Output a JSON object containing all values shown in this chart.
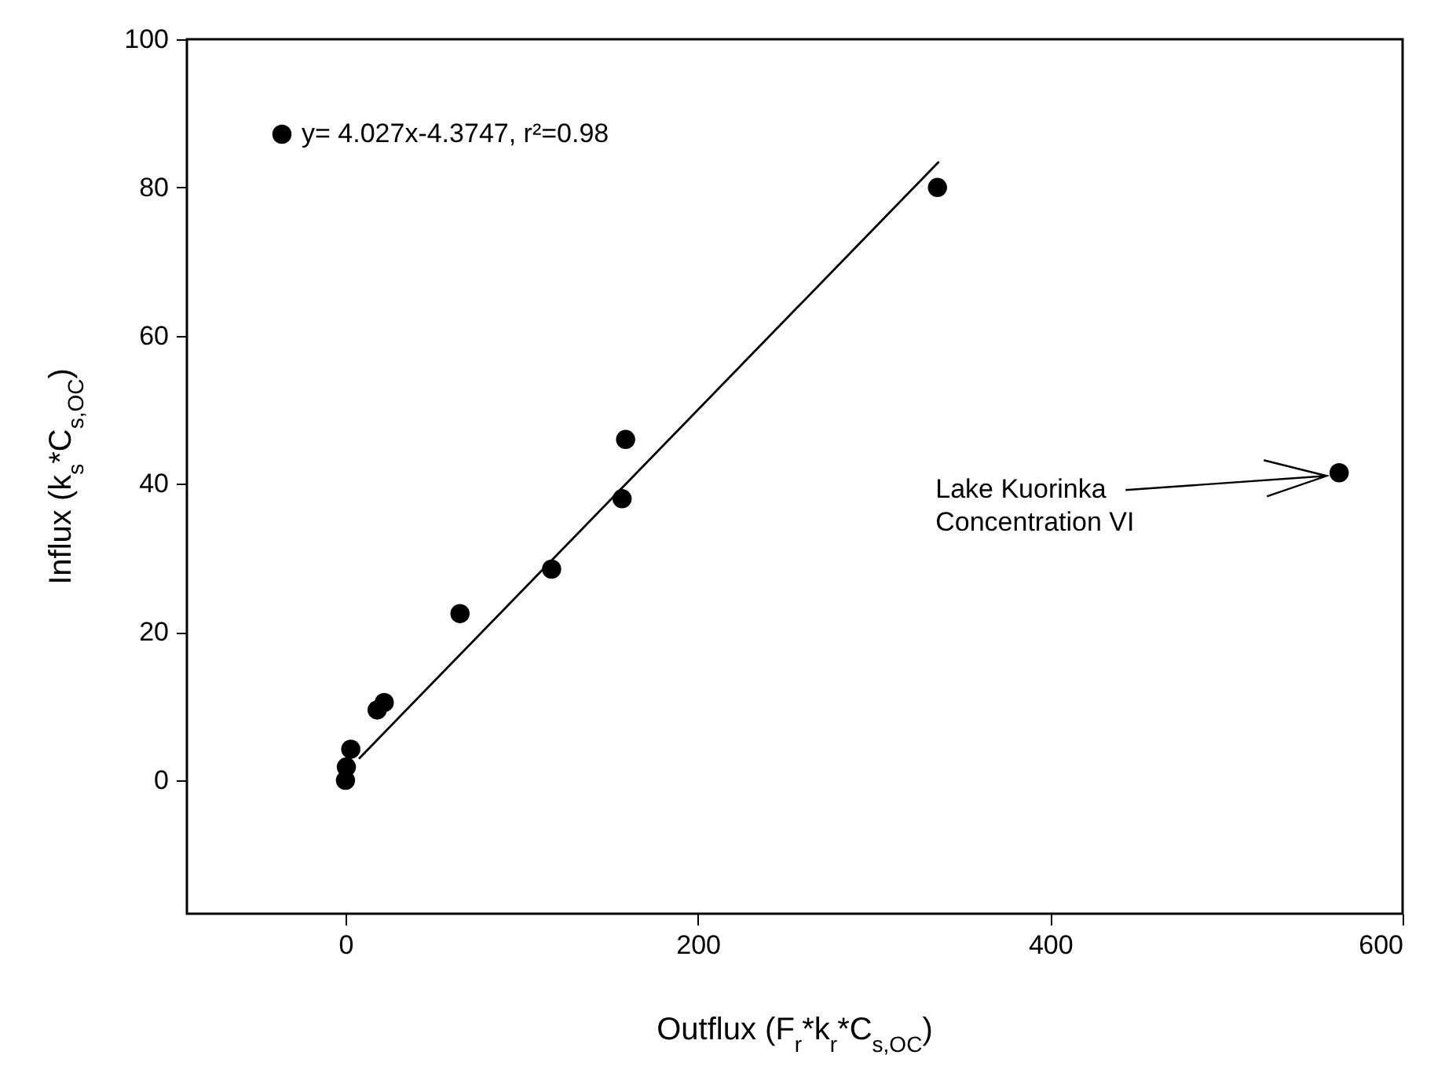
{
  "chart_data": {
    "type": "scatter",
    "xlabel": "Outflux (F$_{r}$*k$_{r}$*C$_{s,OC}$)",
    "ylabel": "Influx (k$_{s}$*C$_{s,OC}$)",
    "xlim": [
      -90,
      600
    ],
    "ylim": [
      -18,
      100
    ],
    "xticks": [
      0,
      200,
      400,
      600
    ],
    "yticks": [
      0,
      20,
      40,
      60,
      80,
      100
    ],
    "legend": "top left",
    "series": [
      {
        "name": "y= 4.027x-4.3747, r²=0.98",
        "color": "#000000",
        "marker": "circle",
        "x": [
          336,
          564,
          159,
          157,
          117,
          65,
          22,
          18,
          3,
          0.5,
          0
        ],
        "values": [
          80,
          41.5,
          46,
          38,
          28.5,
          22.5,
          10.5,
          9.5,
          4.2,
          1.8,
          0
        ]
      },
      {
        "type": "line",
        "color": "#000000",
        "x": [
          8,
          336.5
        ],
        "values": [
          3,
          83.4
        ]
      }
    ],
    "annotations": [
      {
        "text": "Lake Kuorinka\nConcentration VI",
        "x": 564,
        "y": 41.5
      }
    ]
  }
}
